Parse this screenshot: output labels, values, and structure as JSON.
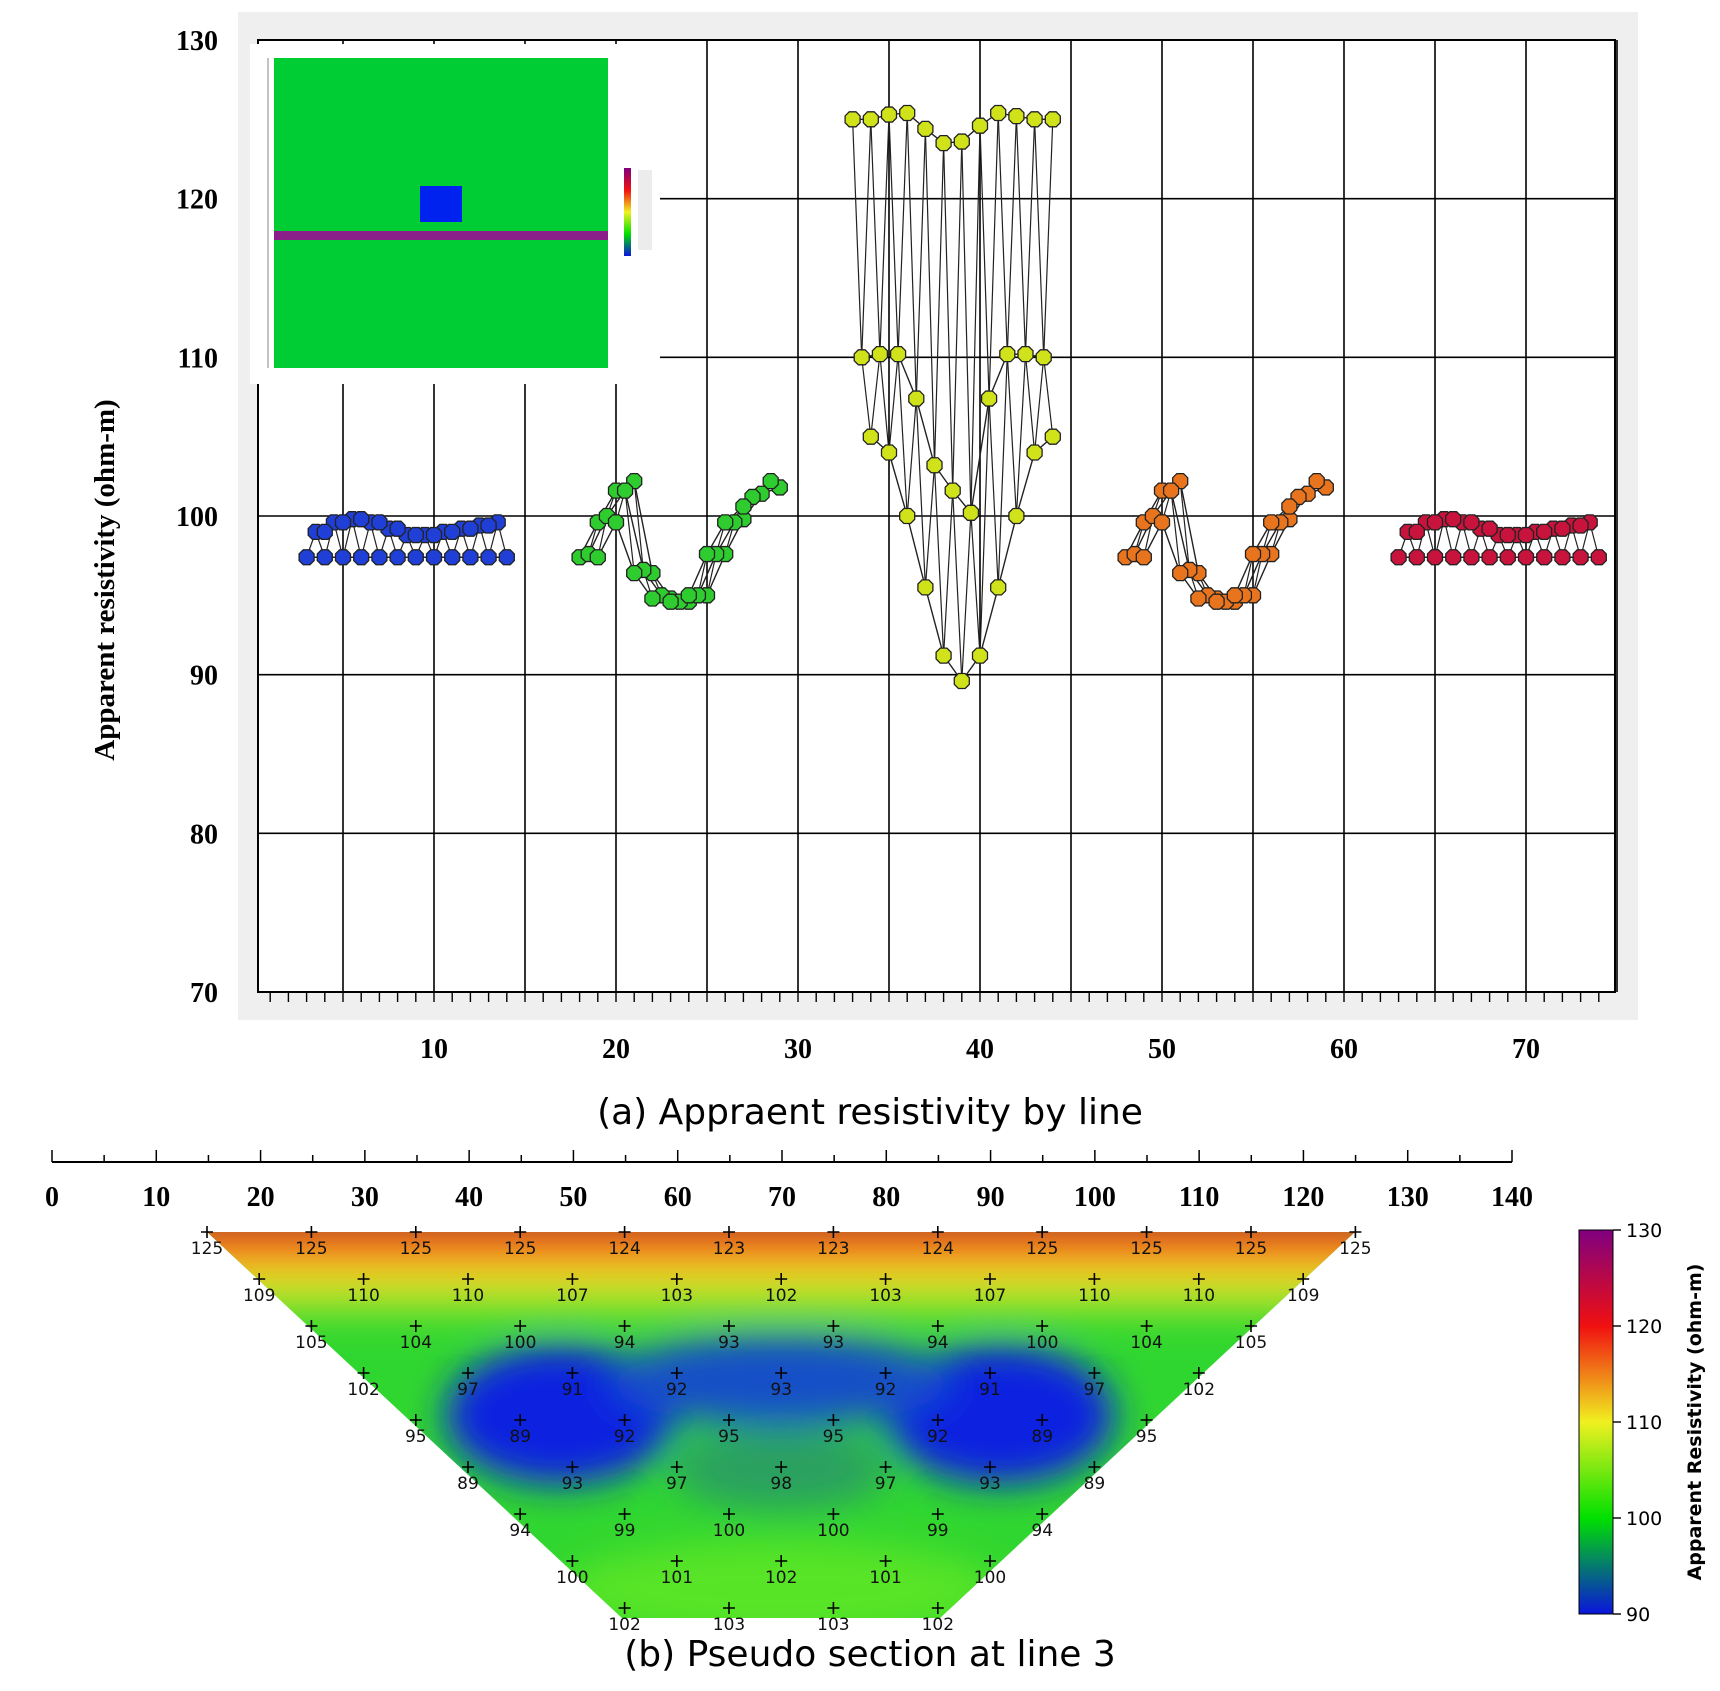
{
  "figure": {
    "caption_a": "(a) Appraent resistivity by line",
    "caption_b": "(b) Pseudo section at line 3"
  },
  "chart_data": [
    {
      "type": "scatter",
      "title": "",
      "xlabel": "",
      "ylabel": "Apparent resistivity (ohm-m)",
      "xlim": [
        0,
        75
      ],
      "ylim": [
        70,
        130
      ],
      "grid": true,
      "x_ticks": [
        10,
        20,
        30,
        40,
        50,
        60,
        70
      ],
      "y_ticks": [
        70,
        80,
        90,
        100,
        110,
        120,
        130
      ],
      "inset": "model resistivity section with a rectangular block above a horizontal layer",
      "lines": [
        {
          "x_range": [
            3,
            14
          ],
          "color": "#1f3fd6",
          "rows": [
            [
              97.4,
              97.4,
              97.4,
              97.4,
              97.4,
              97.4,
              97.4,
              97.4,
              97.4,
              97.4,
              97.4,
              97.4
            ],
            [
              99.0,
              99.6,
              99.8,
              99.6,
              99.2,
              98.8,
              98.8,
              99.0,
              99.2,
              99.4,
              99.6
            ],
            [
              99.0,
              99.6,
              99.8,
              99.6,
              99.2,
              98.8,
              98.8,
              99.0,
              99.2,
              99.4
            ]
          ]
        },
        {
          "x_range": [
            18,
            29
          ],
          "color": "#2ecc2e",
          "rows": [
            [
              97.4,
              99.6,
              101.6,
              102.2,
              96.4,
              94.8,
              94.6,
              95.0,
              97.6,
              99.8,
              101.4,
              101.8
            ],
            [
              97.6,
              100.0,
              101.6,
              96.6,
              95.0,
              94.6,
              95.0,
              97.6,
              99.6,
              101.2,
              102.2
            ],
            [
              97.4,
              99.6,
              96.4,
              94.8,
              94.6,
              95.0,
              97.6,
              99.6,
              100.6
            ]
          ]
        },
        {
          "x_range": [
            33,
            44
          ],
          "color": "#cfe21a",
          "rows": [
            [
              125.0,
              125.0,
              125.3,
              125.4,
              124.4,
              123.5,
              123.6,
              124.6,
              125.4,
              125.2,
              125.0,
              125.0
            ],
            [
              110.0,
              110.2,
              110.2,
              107.4,
              103.2,
              101.6,
              100.2,
              107.4,
              110.2,
              110.2,
              110.0
            ],
            [
              105.0,
              104.0,
              100.0,
              95.5,
              91.2,
              89.6,
              91.2,
              95.5,
              100.0,
              104.0,
              105.0
            ]
          ]
        },
        {
          "x_range": [
            48,
            59
          ],
          "color": "#e8741e",
          "rows": [
            [
              97.4,
              99.6,
              101.6,
              102.2,
              96.4,
              94.8,
              94.6,
              95.0,
              97.6,
              99.8,
              101.4,
              101.8
            ],
            [
              97.6,
              100.0,
              101.6,
              96.6,
              95.0,
              94.6,
              95.0,
              97.6,
              99.6,
              101.2,
              102.2
            ],
            [
              97.4,
              99.6,
              96.4,
              94.8,
              94.6,
              95.0,
              97.6,
              99.6,
              100.6
            ]
          ]
        },
        {
          "x_range": [
            63,
            74
          ],
          "color": "#c8143c",
          "rows": [
            [
              97.4,
              97.4,
              97.4,
              97.4,
              97.4,
              97.4,
              97.4,
              97.4,
              97.4,
              97.4,
              97.4,
              97.4
            ],
            [
              99.0,
              99.6,
              99.8,
              99.6,
              99.2,
              98.8,
              98.8,
              99.0,
              99.2,
              99.4,
              99.6
            ],
            [
              99.0,
              99.6,
              99.8,
              99.6,
              99.2,
              98.8,
              98.8,
              99.0,
              99.2,
              99.4
            ]
          ]
        }
      ]
    },
    {
      "type": "heatmap",
      "title": "",
      "xlabel": "",
      "colorbar_label": "Apparent Resistivity (ohm-m)",
      "xlim": [
        0,
        140
      ],
      "x_ticks": [
        0,
        10,
        20,
        30,
        40,
        50,
        60,
        70,
        80,
        90,
        100,
        110,
        120,
        130,
        140
      ],
      "colorbar_ticks": [
        90,
        100,
        110,
        120,
        130
      ],
      "colorbar_range": [
        90,
        130
      ],
      "levels": [
        {
          "x": [
            15,
            25,
            35,
            45,
            55,
            65,
            75,
            85,
            95,
            105,
            115,
            125
          ],
          "values": [
            "125",
            "125",
            "125",
            "125",
            "124",
            "123",
            "123",
            "124",
            "125",
            "125",
            "125",
            "125"
          ]
        },
        {
          "x": [
            20,
            30,
            40,
            50,
            60,
            70,
            80,
            90,
            100,
            110,
            120
          ],
          "values": [
            "109",
            "110",
            "110",
            "107",
            "103",
            "102",
            "103",
            "107",
            "110",
            "110",
            "109"
          ]
        },
        {
          "x": [
            25,
            35,
            45,
            55,
            65,
            75,
            85,
            95,
            105,
            115
          ],
          "values": [
            "105",
            "104",
            "100",
            "94",
            "93",
            "93",
            "94",
            "100",
            "104",
            "105"
          ]
        },
        {
          "x": [
            30,
            40,
            50,
            60,
            70,
            80,
            90,
            100,
            110
          ],
          "values": [
            "102",
            "97",
            "91",
            "92",
            "93",
            "92",
            "91",
            "97",
            "102"
          ]
        },
        {
          "x": [
            35,
            45,
            55,
            65,
            75,
            85,
            95,
            105
          ],
          "values": [
            "95",
            "89",
            "92",
            "95",
            "95",
            "92",
            "89",
            "95"
          ]
        },
        {
          "x": [
            40,
            50,
            60,
            70,
            80,
            90,
            100
          ],
          "values": [
            "89",
            "93",
            "97",
            "98",
            "97",
            "93",
            "89"
          ]
        },
        {
          "x": [
            45,
            55,
            65,
            75,
            85,
            95
          ],
          "values": [
            "94",
            "99",
            "100",
            "100",
            "99",
            "94"
          ]
        },
        {
          "x": [
            50,
            60,
            70,
            80,
            90
          ],
          "values": [
            "100",
            "101",
            "102",
            "101",
            "100"
          ]
        },
        {
          "x": [
            55,
            65,
            75,
            85
          ],
          "values": [
            "102",
            "103",
            "103",
            "102"
          ]
        }
      ]
    }
  ]
}
